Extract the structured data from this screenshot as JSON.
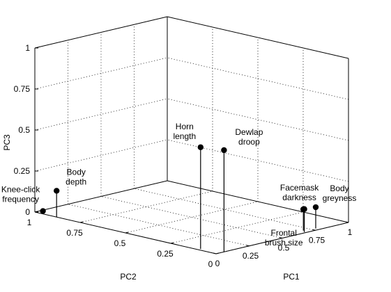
{
  "chart_data": {
    "type": "scatter",
    "projection": "3d-stem",
    "xlabel": "PC1",
    "ylabel": "PC2",
    "zlabel": "PC3",
    "xlim": [
      0,
      1
    ],
    "ylim": [
      0,
      1
    ],
    "zlim": [
      0,
      1
    ],
    "x_ticks": [
      "0",
      "0.25",
      "0.5",
      "0.75",
      "1"
    ],
    "y_ticks": [
      "0",
      "0.25",
      "0.5",
      "0.75",
      "1"
    ],
    "z_ticks": [
      "0",
      "0.25",
      "0.5",
      "0.75",
      "1"
    ],
    "grid": true,
    "points": [
      {
        "label_lines": [
          "Knee-click",
          "frequency"
        ],
        "x": 0.02,
        "y": 0.97,
        "z": 0.01
      },
      {
        "label_lines": [
          "Body",
          "depth"
        ],
        "x": 0.0,
        "y": 0.88,
        "z": 0.16
      },
      {
        "label_lines": [
          "Horn",
          "length"
        ],
        "x": 0.02,
        "y": 0.1,
        "z": 0.62
      },
      {
        "label_lines": [
          "Dewlap",
          "droop"
        ],
        "x": 0.06,
        "y": 0.0,
        "z": 0.62
      },
      {
        "label_lines": [
          "Facemask",
          "darkness"
        ],
        "x": 0.68,
        "y": 0.01,
        "z": 0.14
      },
      {
        "label_lines": [
          "Frontal",
          "brush size"
        ],
        "x": 0.7,
        "y": 0.03,
        "z": 0.13
      },
      {
        "label_lines": [
          "Body",
          "greyness"
        ],
        "x": 0.78,
        "y": 0.02,
        "z": 0.13
      }
    ]
  }
}
